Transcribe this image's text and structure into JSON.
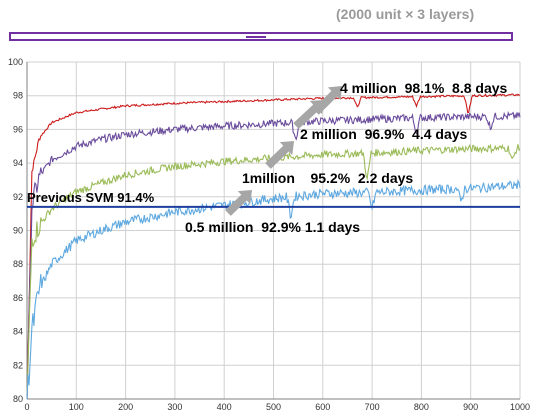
{
  "header": {
    "title": "(2000 unit × 3 layers)"
  },
  "chart_data": {
    "type": "line",
    "x": [
      0,
      10,
      25,
      50,
      100,
      150,
      200,
      300,
      400,
      500,
      600,
      700,
      800,
      900,
      1000
    ],
    "xlim": [
      0,
      1000
    ],
    "ylim": [
      80,
      100
    ],
    "xticks": [
      0,
      100,
      200,
      300,
      400,
      500,
      600,
      700,
      800,
      900,
      1000
    ],
    "yticks": [
      80,
      82,
      84,
      86,
      88,
      90,
      92,
      94,
      96,
      98,
      100
    ],
    "grid": true,
    "series": [
      {
        "color": "#cc1c1c",
        "values": [
          80.0,
          93.5,
          95.5,
          96.4,
          97.0,
          97.2,
          97.4,
          97.55,
          97.65,
          97.75,
          97.85,
          97.9,
          97.95,
          98.0,
          98.05
        ],
        "dips": [
          [
            670,
            97.3
          ],
          [
            790,
            97.4
          ],
          [
            895,
            96.9
          ]
        ]
      },
      {
        "color": "#6a4c9c",
        "values": [
          80.0,
          91.5,
          93.2,
          94.2,
          95.0,
          95.4,
          95.7,
          96.0,
          96.2,
          96.35,
          96.5,
          96.6,
          96.7,
          96.75,
          96.8
        ],
        "dips": [
          [
            545,
            95.4
          ],
          [
            790,
            95.8
          ],
          [
            940,
            96.1
          ]
        ]
      },
      {
        "color": "#9bbb59",
        "values": [
          80.0,
          89.5,
          90.3,
          91.3,
          92.3,
          92.8,
          93.3,
          93.8,
          94.1,
          94.3,
          94.5,
          94.6,
          94.75,
          94.85,
          94.9
        ],
        "dips": [
          [
            690,
            93.0
          ],
          [
            985,
            94.1
          ]
        ]
      },
      {
        "color": "#5ea8e0",
        "values": [
          80.0,
          84.0,
          86.5,
          88.0,
          89.4,
          90.0,
          90.5,
          91.1,
          91.5,
          91.9,
          92.2,
          92.25,
          92.4,
          92.5,
          92.7
        ],
        "dips": [
          [
            535,
            90.8
          ],
          [
            700,
            91.3
          ],
          [
            880,
            91.7
          ]
        ]
      }
    ],
    "reference_line": {
      "value": 91.4,
      "color": "#1f3f9f",
      "label": "Previous SVM 91.4%"
    },
    "annotations": [
      {
        "text": "0.5 million  92.9% 1.1 days"
      },
      {
        "text": "1million    95.2%  2.2 days"
      },
      {
        "text": "2 million  96.9%  4.4 days"
      },
      {
        "text": "4 million  98.1%  8.8 days"
      }
    ],
    "arrows_color": "#a6a6a6"
  }
}
